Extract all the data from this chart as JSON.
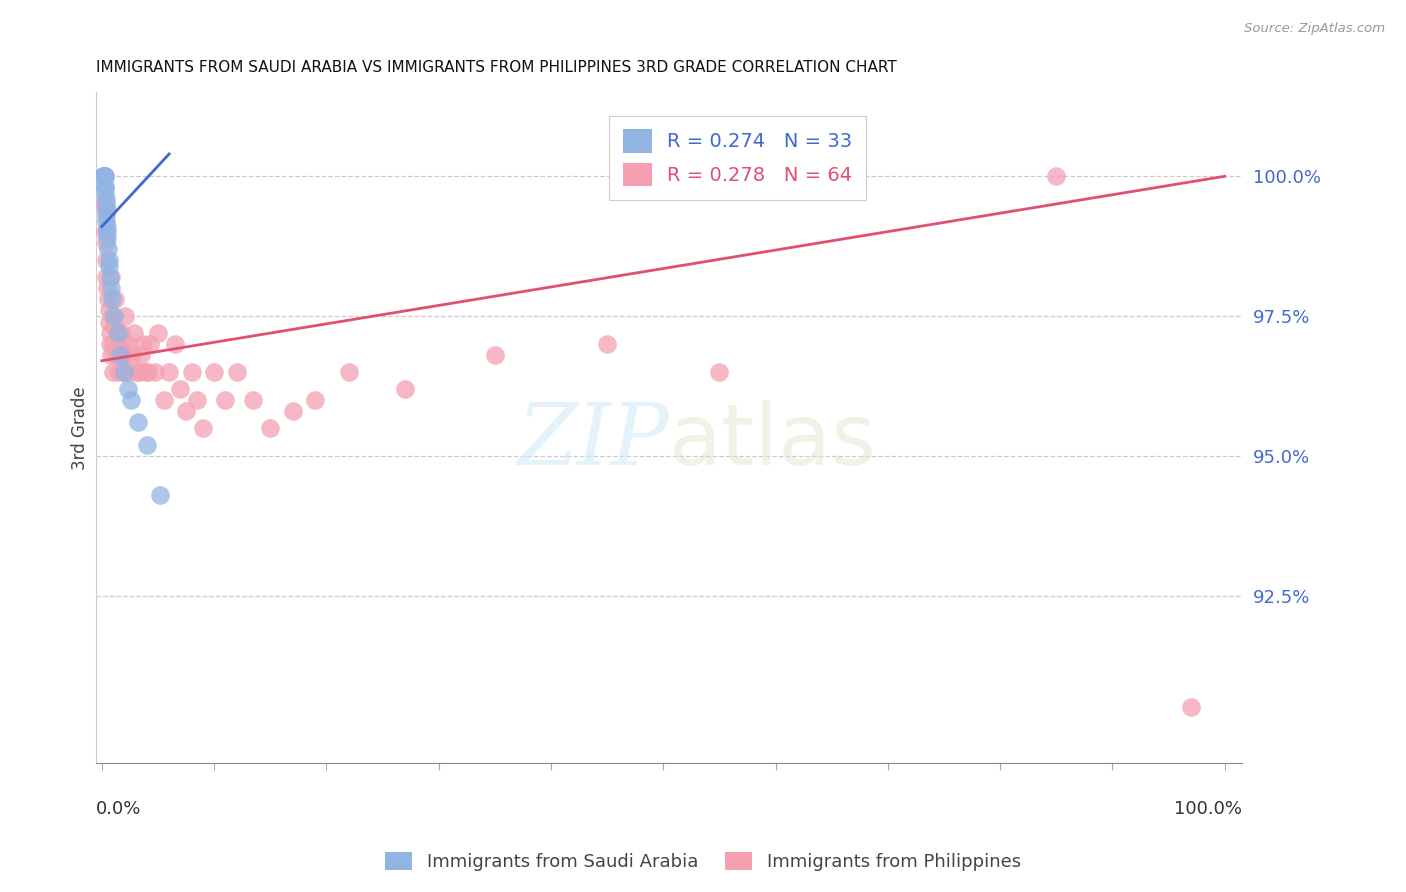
{
  "title": "IMMIGRANTS FROM SAUDI ARABIA VS IMMIGRANTS FROM PHILIPPINES 3RD GRADE CORRELATION CHART",
  "source": "Source: ZipAtlas.com",
  "ylabel": "3rd Grade",
  "yticks": [
    92.5,
    95.0,
    97.5,
    100.0
  ],
  "ytick_labels": [
    "92.5%",
    "95.0%",
    "97.5%",
    "100.0%"
  ],
  "ymin": 89.5,
  "ymax": 101.5,
  "xmin": -0.5,
  "xmax": 101.5,
  "color_saudi": "#92B4E3",
  "color_phil": "#F4A0B0",
  "color_trend_saudi": "#4169CD",
  "color_trend_phil": "#E05070",
  "color_ytick_label": "#4169CD",
  "saudi_x": [
    0.1,
    0.15,
    0.2,
    0.2,
    0.2,
    0.25,
    0.25,
    0.3,
    0.3,
    0.3,
    0.35,
    0.35,
    0.4,
    0.4,
    0.4,
    0.45,
    0.5,
    0.5,
    0.55,
    0.6,
    0.6,
    0.7,
    0.8,
    0.9,
    1.1,
    1.4,
    1.6,
    2.0,
    2.3,
    2.6,
    3.2,
    4.0,
    5.2
  ],
  "saudi_y": [
    100.0,
    100.0,
    100.0,
    100.0,
    100.0,
    100.0,
    100.0,
    99.8,
    99.8,
    99.7,
    99.6,
    99.5,
    99.4,
    99.3,
    99.2,
    99.1,
    99.0,
    98.9,
    98.7,
    98.5,
    98.4,
    98.2,
    98.0,
    97.8,
    97.5,
    97.2,
    96.8,
    96.5,
    96.2,
    96.0,
    95.6,
    95.2,
    94.3
  ],
  "phil_x": [
    0.2,
    0.25,
    0.35,
    0.4,
    0.4,
    0.45,
    0.5,
    0.55,
    0.6,
    0.65,
    0.7,
    0.75,
    0.8,
    0.85,
    0.9,
    1.0,
    1.0,
    1.1,
    1.2,
    1.3,
    1.4,
    1.5,
    1.6,
    1.7,
    1.8,
    1.9,
    2.0,
    2.1,
    2.2,
    2.3,
    2.5,
    2.7,
    2.9,
    3.1,
    3.3,
    3.5,
    3.7,
    3.9,
    4.1,
    4.3,
    4.7,
    5.0,
    5.5,
    6.0,
    6.5,
    7.0,
    7.5,
    8.0,
    8.5,
    9.0,
    10.0,
    11.0,
    12.0,
    13.5,
    15.0,
    17.0,
    19.0,
    22.0,
    27.0,
    35.0,
    45.0,
    55.0,
    85.0,
    97.0
  ],
  "phil_y": [
    99.5,
    99.0,
    98.8,
    98.5,
    98.2,
    98.0,
    99.4,
    97.8,
    97.6,
    97.4,
    97.2,
    97.0,
    98.2,
    96.8,
    97.5,
    96.5,
    97.0,
    97.3,
    97.8,
    96.8,
    97.2,
    96.5,
    97.0,
    97.2,
    96.8,
    97.0,
    96.5,
    97.5,
    96.8,
    97.0,
    96.5,
    96.8,
    97.2,
    96.5,
    96.5,
    96.8,
    97.0,
    96.5,
    96.5,
    97.0,
    96.5,
    97.2,
    96.0,
    96.5,
    97.0,
    96.2,
    95.8,
    96.5,
    96.0,
    95.5,
    96.5,
    96.0,
    96.5,
    96.0,
    95.5,
    95.8,
    96.0,
    96.5,
    96.2,
    96.8,
    97.0,
    96.5,
    100.0,
    90.5
  ],
  "saudi_trend_x": [
    0.0,
    6.0
  ],
  "saudi_trend_y": [
    99.1,
    100.4
  ],
  "phil_trend_x": [
    0.0,
    100.0
  ],
  "phil_trend_y": [
    96.7,
    100.0
  ],
  "xtick_positions": [
    0,
    10,
    20,
    30,
    40,
    50,
    60,
    70,
    80,
    90,
    100
  ]
}
